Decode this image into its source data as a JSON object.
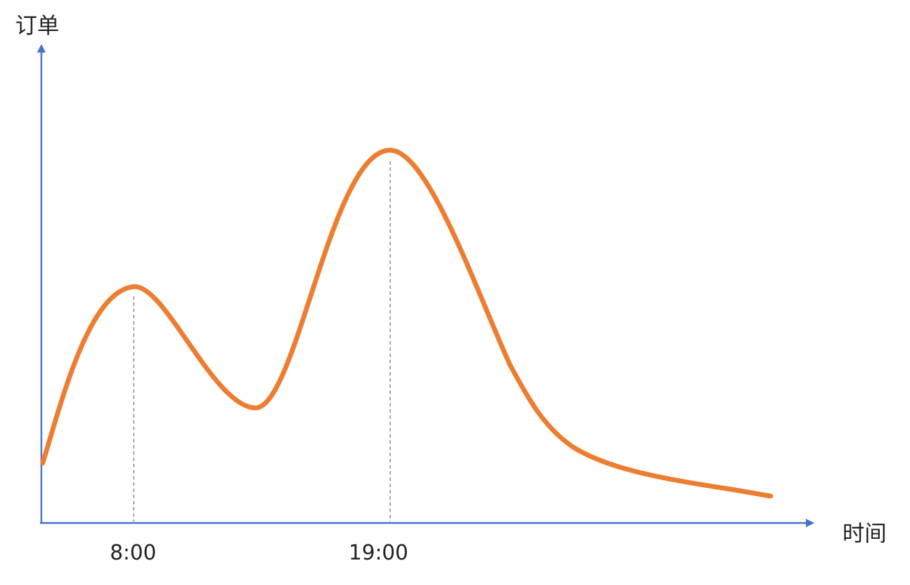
{
  "axes": {
    "y_label": "订单",
    "x_label": "时间"
  },
  "markers": [
    "8:00",
    "19:00"
  ]
}
